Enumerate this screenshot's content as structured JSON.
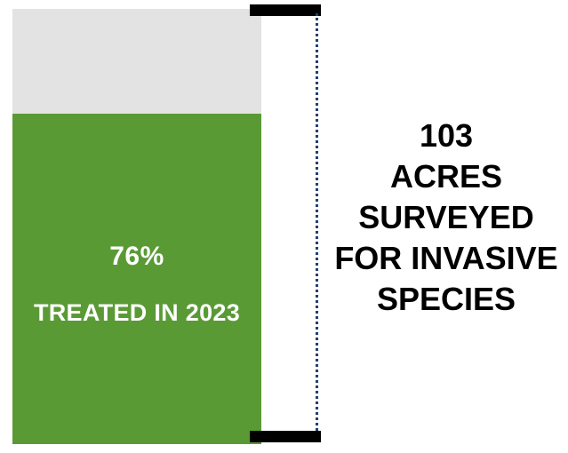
{
  "colors": {
    "treated": "#5a9a35",
    "untreated": "#e3e3e3",
    "bracket": "#000000",
    "dotted_line": "#1f3f74"
  },
  "chart_data": {
    "type": "bar",
    "stacked": true,
    "total": 103,
    "segments": [
      {
        "value": 76,
        "unit": "%",
        "label": "TREATED IN 2023"
      },
      {
        "value": 24,
        "unit": "%",
        "label": ""
      }
    ],
    "treated_percent_label": "76%",
    "treated_label": "TREATED IN 2023",
    "annotation_lines": [
      "103",
      "ACRES",
      "SURVEYED",
      "FOR INVASIVE",
      "SPECIES"
    ]
  }
}
